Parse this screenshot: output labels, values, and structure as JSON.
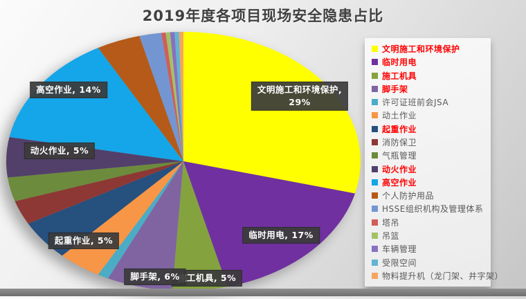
{
  "title": "2019年度各项目现场安全隐患占比",
  "colors": {
    "title_text": "#404040",
    "legend_red": "#FF0000",
    "legend_gray": "#595959",
    "label_box_bg": "#3B3B3B",
    "label_text": "#FFFFFF",
    "bottom_bar": "#7E7E7E"
  },
  "chart_data": {
    "type": "pie",
    "title": "2019年度各项目现场安全隐患占比",
    "legend_position": "right",
    "start_angle_deg": 0,
    "direction": "clockwise",
    "slices": [
      {
        "label": "文明施工和环境保护",
        "value": 29,
        "color": "#FFFF00",
        "legend_red": true,
        "data_label_lines": [
          "文明施工和环境保护,",
          "29%"
        ]
      },
      {
        "label": "临时用电",
        "value": 17,
        "color": "#7030A0",
        "legend_red": true,
        "data_label_lines": [
          "临时用电, 17%"
        ]
      },
      {
        "label": "施工机具",
        "value": 5,
        "color": "#84A33E",
        "legend_red": true,
        "data_label_lines": [
          "施工机具, 5%"
        ]
      },
      {
        "label": "脚手架",
        "value": 6,
        "color": "#8064A2",
        "legend_red": true,
        "data_label_lines": [
          "脚手架, 6%"
        ]
      },
      {
        "label": "许可证班前会JSA",
        "value": 1,
        "color": "#4BACC6",
        "legend_red": false,
        "data_label_lines": []
      },
      {
        "label": "动土作业",
        "value": 4,
        "color": "#F79646",
        "legend_red": false,
        "data_label_lines": []
      },
      {
        "label": "起重作业",
        "value": 5,
        "color": "#26507E",
        "legend_red": true,
        "data_label_lines": [
          "起重作业, 5%"
        ]
      },
      {
        "label": "消防保卫",
        "value": 3,
        "color": "#8D3835",
        "legend_red": false,
        "data_label_lines": []
      },
      {
        "label": "气瓶管理",
        "value": 3,
        "color": "#6C8B3C",
        "legend_red": false,
        "data_label_lines": []
      },
      {
        "label": "动火作业",
        "value": 5,
        "color": "#52406B",
        "legend_red": true,
        "data_label_lines": [
          "动火作业, 5%"
        ]
      },
      {
        "label": "高空作业",
        "value": 14,
        "color": "#14A6E8",
        "legend_red": true,
        "data_label_lines": [
          "高空作业, 14%"
        ]
      },
      {
        "label": "个人防护用品",
        "value": 4,
        "color": "#B55A18",
        "legend_red": false,
        "data_label_lines": []
      },
      {
        "label": "HSSE组织机构及管理体系",
        "value": 2,
        "color": "#7396D2",
        "legend_red": false,
        "data_label_lines": []
      },
      {
        "label": "塔吊",
        "value": 0.4,
        "color": "#D05E5A",
        "legend_red": false,
        "data_label_lines": []
      },
      {
        "label": "吊篮",
        "value": 0.4,
        "color": "#A3C166",
        "legend_red": false,
        "data_label_lines": []
      },
      {
        "label": "车辆管理",
        "value": 0.4,
        "color": "#8970C1",
        "legend_red": false,
        "data_label_lines": []
      },
      {
        "label": "受限空间",
        "value": 0.4,
        "color": "#62B4D2",
        "legend_red": false,
        "data_label_lines": []
      },
      {
        "label": "物料提升机（龙门架、井字架）",
        "value": 0.4,
        "color": "#F4A55F",
        "legend_red": false,
        "data_label_lines": []
      }
    ]
  }
}
